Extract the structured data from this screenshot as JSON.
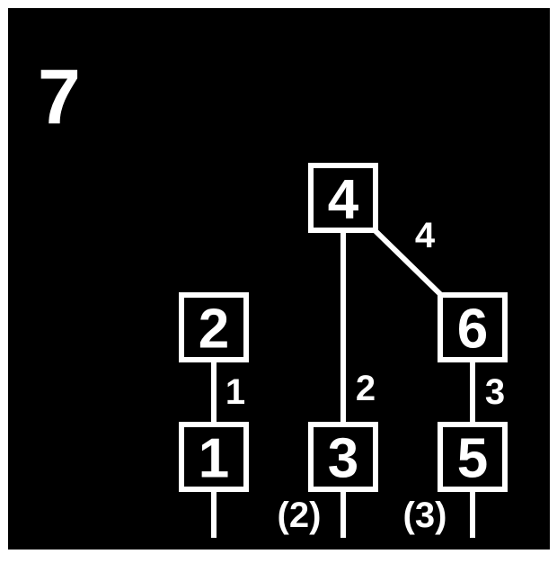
{
  "diagram": {
    "main_label": "7",
    "background": "#000000",
    "foreground": "#ffffff",
    "nodes": [
      {
        "id": "n1",
        "label": "1"
      },
      {
        "id": "n2",
        "label": "2"
      },
      {
        "id": "n3",
        "label": "3"
      },
      {
        "id": "n4",
        "label": "4"
      },
      {
        "id": "n5",
        "label": "5"
      },
      {
        "id": "n6",
        "label": "6"
      }
    ],
    "edges": [
      {
        "from": "n2",
        "to": "n1",
        "label": "1"
      },
      {
        "from": "n4",
        "to": "n3",
        "label": "2"
      },
      {
        "from": "n6",
        "to": "n5",
        "label": "3"
      },
      {
        "from": "n4",
        "to": "n6",
        "label": "4"
      }
    ],
    "stub_labels": [
      {
        "node": "n1",
        "label": ""
      },
      {
        "node": "n3",
        "label": "(2)"
      },
      {
        "node": "n5",
        "label": "(3)"
      }
    ]
  }
}
